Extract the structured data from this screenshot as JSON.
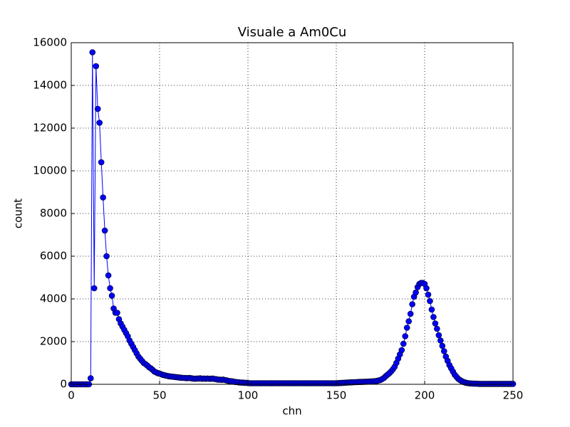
{
  "chart_data": {
    "type": "line",
    "title": "Visuale a Am0Cu",
    "x_label": "chn",
    "y_label": "count",
    "x": [
      0,
      1,
      2,
      3,
      4,
      5,
      6,
      7,
      8,
      9,
      10,
      11,
      12,
      13,
      14,
      15,
      16,
      17,
      18,
      19,
      20,
      21,
      22,
      23,
      24,
      25,
      26,
      27,
      28,
      29,
      30,
      31,
      32,
      33,
      34,
      35,
      36,
      37,
      38,
      39,
      40,
      41,
      42,
      43,
      44,
      45,
      46,
      47,
      48,
      49,
      50,
      51,
      52,
      53,
      54,
      55,
      56,
      57,
      58,
      59,
      60,
      61,
      62,
      63,
      64,
      65,
      66,
      67,
      68,
      69,
      70,
      71,
      72,
      73,
      74,
      75,
      76,
      77,
      78,
      79,
      80,
      81,
      82,
      83,
      84,
      85,
      86,
      87,
      88,
      89,
      90,
      91,
      92,
      93,
      94,
      95,
      96,
      97,
      98,
      99,
      100,
      101,
      102,
      103,
      104,
      105,
      106,
      107,
      108,
      109,
      110,
      111,
      112,
      113,
      114,
      115,
      116,
      117,
      118,
      119,
      120,
      121,
      122,
      123,
      124,
      125,
      126,
      127,
      128,
      129,
      130,
      131,
      132,
      133,
      134,
      135,
      136,
      137,
      138,
      139,
      140,
      141,
      142,
      143,
      144,
      145,
      146,
      147,
      148,
      149,
      150,
      151,
      152,
      153,
      154,
      155,
      156,
      157,
      158,
      159,
      160,
      161,
      162,
      163,
      164,
      165,
      166,
      167,
      168,
      169,
      170,
      171,
      172,
      173,
      174,
      175,
      176,
      177,
      178,
      179,
      180,
      181,
      182,
      183,
      184,
      185,
      186,
      187,
      188,
      189,
      190,
      191,
      192,
      193,
      194,
      195,
      196,
      197,
      198,
      199,
      200,
      201,
      202,
      203,
      204,
      205,
      206,
      207,
      208,
      209,
      210,
      211,
      212,
      213,
      214,
      215,
      216,
      217,
      218,
      219,
      220,
      221,
      222,
      223,
      224,
      225,
      226,
      227,
      228,
      229,
      230,
      231,
      232,
      233,
      234,
      235,
      236,
      237,
      238,
      239,
      240,
      241,
      242,
      243,
      244,
      245,
      246,
      247,
      248,
      249,
      250
    ],
    "series": [
      {
        "color": "#0000ff",
        "values": [
          0,
          0,
          0,
          0,
          0,
          0,
          0,
          0,
          0,
          0,
          0,
          280,
          15550,
          4500,
          14900,
          12900,
          12250,
          10400,
          8750,
          7200,
          6000,
          5100,
          4500,
          4150,
          3550,
          3350,
          3350,
          3050,
          2850,
          2700,
          2550,
          2400,
          2250,
          2050,
          1900,
          1750,
          1600,
          1450,
          1300,
          1200,
          1100,
          1000,
          950,
          880,
          800,
          750,
          680,
          600,
          560,
          520,
          500,
          470,
          440,
          420,
          400,
          380,
          370,
          360,
          350,
          340,
          330,
          320,
          310,
          300,
          300,
          290,
          290,
          300,
          280,
          270,
          260,
          270,
          270,
          280,
          260,
          270,
          260,
          270,
          260,
          260,
          270,
          250,
          240,
          220,
          220,
          210,
          220,
          200,
          180,
          160,
          150,
          140,
          120,
          110,
          100,
          90,
          80,
          80,
          70,
          70,
          60,
          50,
          50,
          50,
          50,
          50,
          50,
          50,
          50,
          50,
          50,
          50,
          50,
          50,
          50,
          50,
          50,
          50,
          50,
          50,
          50,
          50,
          50,
          50,
          50,
          50,
          50,
          50,
          50,
          50,
          50,
          50,
          50,
          50,
          50,
          50,
          50,
          50,
          50,
          50,
          50,
          50,
          50,
          50,
          50,
          50,
          50,
          50,
          50,
          50,
          50,
          55,
          60,
          65,
          70,
          75,
          80,
          85,
          90,
          95,
          100,
          100,
          105,
          110,
          110,
          115,
          120,
          120,
          125,
          130,
          135,
          140,
          150,
          160,
          180,
          200,
          250,
          300,
          380,
          450,
          520,
          600,
          700,
          820,
          1000,
          1200,
          1400,
          1600,
          1900,
          2250,
          2650,
          2950,
          3300,
          3750,
          4100,
          4300,
          4550,
          4700,
          4750,
          4750,
          4700,
          4500,
          4200,
          3900,
          3500,
          3150,
          2850,
          2600,
          2300,
          2050,
          1800,
          1550,
          1300,
          1100,
          900,
          750,
          600,
          450,
          350,
          260,
          200,
          150,
          110,
          80,
          60,
          50,
          40,
          35,
          30,
          30,
          25,
          20,
          20,
          20,
          20,
          20,
          20,
          20,
          20,
          20,
          20,
          20,
          20,
          20,
          20,
          20,
          20,
          20,
          20,
          20,
          20
        ]
      }
    ],
    "xlim": [
      0,
      250
    ],
    "xticks": [
      0,
      50,
      100,
      150,
      200,
      250
    ],
    "ylim": [
      0,
      16000
    ],
    "yticks": [
      0,
      2000,
      4000,
      6000,
      8000,
      10000,
      12000,
      14000,
      16000
    ],
    "grid": true
  }
}
